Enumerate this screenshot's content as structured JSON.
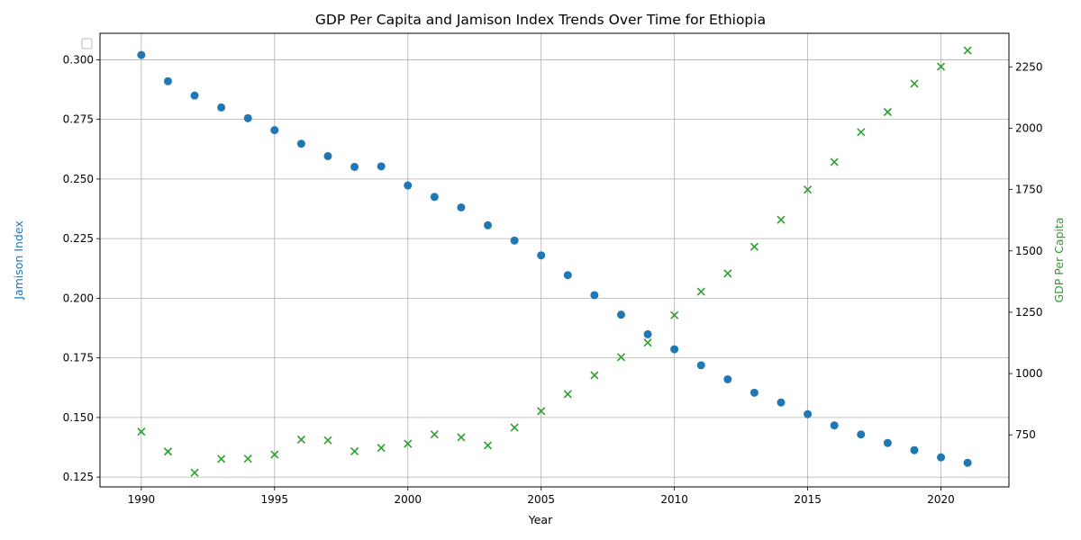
{
  "chart_data": {
    "type": "scatter",
    "title": "GDP Per Capita and Jamison Index Trends Over Time for Ethiopia",
    "xlabel": "Year",
    "ylabel_left": "Jamison Index",
    "ylabel_right": "GDP Per Capita",
    "x": [
      1990,
      1991,
      1992,
      1993,
      1994,
      1995,
      1996,
      1997,
      1998,
      1999,
      2000,
      2001,
      2002,
      2003,
      2004,
      2005,
      2006,
      2007,
      2008,
      2009,
      2010,
      2011,
      2012,
      2013,
      2014,
      2015,
      2016,
      2017,
      2018,
      2019,
      2020,
      2021
    ],
    "xlim": [
      1988.45,
      2022.55
    ],
    "xticks": [
      1990,
      1995,
      2000,
      2005,
      2010,
      2015,
      2020
    ],
    "grid": true,
    "legend": "top-left, empty",
    "series": [
      {
        "axis": "left",
        "marker": "circle",
        "color": "#1f77b4",
        "values": [
          0.302,
          0.291,
          0.285,
          0.28,
          0.2755,
          0.2705,
          0.2648,
          0.2596,
          0.2551,
          0.2553,
          0.2473,
          0.2425,
          0.2381,
          0.2306,
          0.2242,
          0.218,
          0.2097,
          0.2013,
          0.1931,
          0.1849,
          0.1786,
          0.1719,
          0.166,
          0.1604,
          0.1563,
          0.1514,
          0.1467,
          0.1429,
          0.1393,
          0.1363,
          0.1333,
          0.131
        ]
      },
      {
        "axis": "right",
        "marker": "x",
        "color": "#2ca02c",
        "values": [
          763,
          682,
          596,
          652,
          653,
          670,
          731,
          728,
          683,
          697,
          714,
          752,
          740,
          707,
          780,
          847,
          916,
          993,
          1067,
          1126,
          1238,
          1334,
          1408,
          1517,
          1627,
          1750,
          1862,
          1984,
          2066,
          2182,
          2251,
          2317
        ]
      }
    ],
    "ylim_left": [
      0.1209,
      0.3111
    ],
    "ylim_right": [
      538,
      2387
    ],
    "yticks_left": [
      "0.125",
      "0.150",
      "0.175",
      "0.200",
      "0.225",
      "0.250",
      "0.275",
      "0.300"
    ],
    "yticks_right": [
      "750",
      "1000",
      "1250",
      "1500",
      "1750",
      "2000",
      "2250"
    ]
  }
}
